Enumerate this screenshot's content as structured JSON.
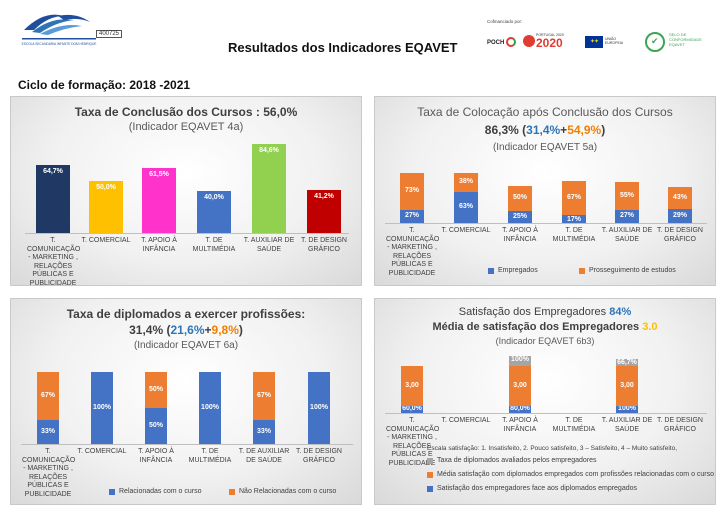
{
  "header": {
    "title": "Resultados dos Indicadores EQAVET",
    "school_code": "400725",
    "school_name": "ESCOLA SECUNDÁRIA INFANTE DOM HENRIQUE",
    "funded_by": "Cofinanciado por:",
    "sponsors": [
      "POCH",
      "PORTUGAL 2020",
      "UNIÃO EUROPEIA",
      "SELO DE CONFORMIDADE EQAVET"
    ]
  },
  "cycle": "Ciclo de formação: 2018 -2021",
  "colors": {
    "navy": "#1f3864",
    "yellow": "#ffc000",
    "pink": "#ff33cc",
    "blue": "#4472c4",
    "green": "#92d050",
    "red": "#c00000",
    "orange": "#ed7d31",
    "gray": "#a5a5a5",
    "accent_blue": "#2e75b6",
    "accent_orange": "#f08000",
    "accent_gold": "#ffc000"
  },
  "conclusion": {
    "title": "Taxa de Conclusão dos Cursos : 56,0%",
    "subtitle": "(Indicador EQAVET 4a)",
    "chart_data": {
      "type": "bar",
      "title": "Taxa de Conclusão dos Cursos : 56,0%",
      "categories": [
        "T. COMUNICAÇÃO - MARKETING , RELAÇÕES PÚBLICAS E PUBLICIDADE",
        "T. COMERCIAL",
        "T. APOIO À INFÂNCIA",
        "T. DE MULTIMÉDIA",
        "T. AUXILIAR DE SAÚDE",
        "T. DE DESIGN GRÁFICO"
      ],
      "values": [
        64.7,
        50.0,
        61.5,
        40.0,
        84.6,
        41.2
      ],
      "labels": [
        "64,7%",
        "50,0%",
        "61,5%",
        "40,0%",
        "84,6%",
        "41,2%"
      ],
      "ylim": [
        0,
        100
      ]
    }
  },
  "placement": {
    "title": "Taxa de Colocação após Conclusão dos Cursos",
    "summary_total": "86,3%",
    "summary_open": "(",
    "summary_a": "31,4%",
    "summary_plus": "+",
    "summary_b": "54,9%",
    "summary_close": ")",
    "subtitle": "(Indicador EQAVET 5a)",
    "chart_data": {
      "type": "bar",
      "stacked": true,
      "categories": [
        "T. COMUNICAÇÃO - MARKETING , RELAÇÕES PÚBLICAS E PUBLICIDADE",
        "T. COMERCIAL",
        "T. APOIO À INFÂNCIA",
        "T. DE MULTIMÉDIA",
        "T. AUXILIAR DE SAÚDE",
        "T. DE DESIGN GRÁFICO"
      ],
      "series": [
        {
          "name": "Empregados",
          "values": [
            27,
            63,
            25,
            17,
            27,
            29
          ],
          "labels": [
            "27%",
            "63%",
            "25%",
            "17%",
            "27%",
            "29%"
          ]
        },
        {
          "name": "Prosseguimento de estudos",
          "values": [
            73,
            38,
            50,
            67,
            55,
            43
          ],
          "labels": [
            "73%",
            "38%",
            "50%",
            "67%",
            "55%",
            "43%"
          ]
        }
      ],
      "ylim": [
        0,
        100
      ]
    }
  },
  "graduates": {
    "title": "Taxa de diplomados a exercer profissões:",
    "summary_total": "31,4%",
    "summary_open": "(",
    "summary_a": "21,6%",
    "summary_plus": "+",
    "summary_b": "9,8%",
    "summary_close": ")",
    "subtitle": "(Indicador EQAVET 6a)",
    "chart_data": {
      "type": "bar",
      "stacked": true,
      "categories": [
        "T. COMUNICAÇÃO - MARKETING , RELAÇÕES PÚBLICAS E PUBLICIDADE",
        "T. COMERCIAL",
        "T. APOIO À INFÂNCIA",
        "T. DE MULTIMÉDIA",
        "T. DE AUXILIAR DE SAÚDE",
        "T. DE DESIGN GRÁFICO"
      ],
      "series": [
        {
          "name": "Relacionadas com o curso",
          "values": [
            33,
            100,
            50,
            100,
            33,
            100
          ],
          "labels": [
            "33%",
            "100%",
            "50%",
            "100%",
            "33%",
            "100%"
          ]
        },
        {
          "name": "Não Relacionadas com o curso",
          "values": [
            67,
            0,
            50,
            0,
            67,
            0
          ],
          "labels": [
            "67%",
            "",
            "50%",
            "",
            "67%",
            ""
          ]
        }
      ],
      "ylim": [
        0,
        100
      ]
    }
  },
  "satisfaction": {
    "title_a": "Satisfação dos Empregadores",
    "title_a_value": "84%",
    "title_b": "Média de satisfação dos Empregadores",
    "title_b_value": "3.0",
    "subtitle": "(Indicador EQAVET 6b3)",
    "scale_note": "Escala satisfação: 1. Insatisfeito, 2. Pouco satisfeito, 3 – Satisfeito, 4 – Muito satisfeito,",
    "chart_data": {
      "type": "bar",
      "categories": [
        "T. COMUNICAÇÃO - MARKETING , RELAÇÕES PÚBLICAS E PUBLICIDADE",
        "T. COMERCIAL",
        "T. APOIO À INFÂNCIA",
        "T. DE MULTIMÉDIA",
        "T. AUXILIAR DE SAÚDE",
        "T. DE DESIGN GRÁFICO"
      ],
      "series": [
        {
          "name": "Taxa de diplomados avaliados pelos empregadores",
          "values": [
            null,
            null,
            100,
            null,
            66.7,
            null
          ],
          "labels": [
            "",
            "",
            "100%",
            "",
            "66,7%",
            ""
          ]
        },
        {
          "name": "Média satisfação com diplomados empregados com profissões relacionadas com o curso",
          "values": [
            3.0,
            null,
            3.0,
            null,
            3.0,
            null
          ],
          "labels": [
            "3,00",
            "",
            "3,00",
            "",
            "3,00",
            ""
          ]
        },
        {
          "name": "Satisfação dos empregadores face aos diplomados empregados",
          "values": [
            60.0,
            null,
            80.0,
            null,
            100,
            null
          ],
          "labels": [
            "60,0%",
            "",
            "80,0%",
            "",
            "100%",
            ""
          ]
        }
      ]
    }
  }
}
